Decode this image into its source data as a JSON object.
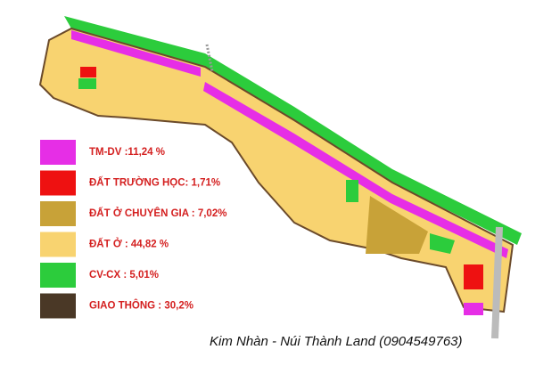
{
  "legend": [
    {
      "label": "TM-DV :11,24 %",
      "color": "#e62ee6"
    },
    {
      "label": "ĐẤT TRƯỜNG HỌC: 1,71%",
      "color": "#ee1111"
    },
    {
      "label": "ĐẤT Ở CHUYÊN GIA : 7,02%",
      "color": "#c8a238"
    },
    {
      "label": "ĐẤT Ở : 44,82 %",
      "color": "#f8d370"
    },
    {
      "label": "CV-CX : 5,01%",
      "color": "#2ccc3c"
    },
    {
      "label": "GIAO THÔNG : 30,2%",
      "color": "#4a3826"
    }
  ],
  "footer": "Kim Nhàn - Núi Thành Land (0904549763)"
}
